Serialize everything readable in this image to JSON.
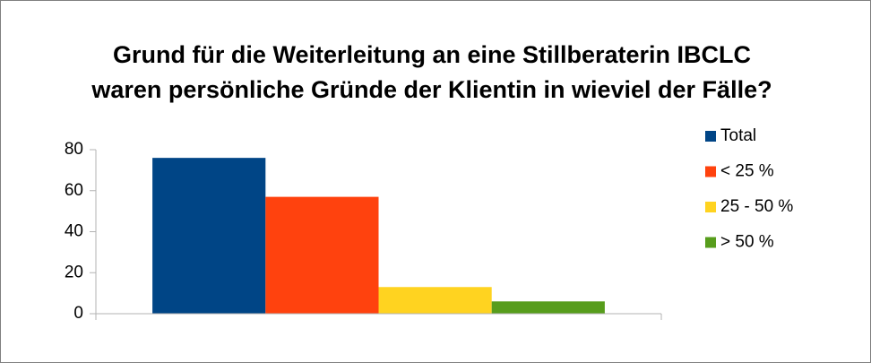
{
  "chart_data": {
    "type": "bar",
    "title": [
      "Grund für die Weiterleitung an eine Stillberaterin IBCLC",
      "waren persönliche Gründe der Klientin in wieviel der Fälle?"
    ],
    "categories": [
      null
    ],
    "series": [
      {
        "name": "Total",
        "color": "#004586",
        "values": [
          76
        ]
      },
      {
        "name": "< 25 %",
        "color": "#ff420e",
        "values": [
          57
        ]
      },
      {
        "name": "25 - 50 %",
        "color": "#ffd320",
        "values": [
          13
        ]
      },
      {
        "name": "> 50 %",
        "color": "#579d1c",
        "values": [
          6
        ]
      }
    ],
    "ylim": [
      0,
      80
    ],
    "yticks": [
      0,
      20,
      40,
      60,
      80
    ],
    "grid": false,
    "legend": "right"
  }
}
